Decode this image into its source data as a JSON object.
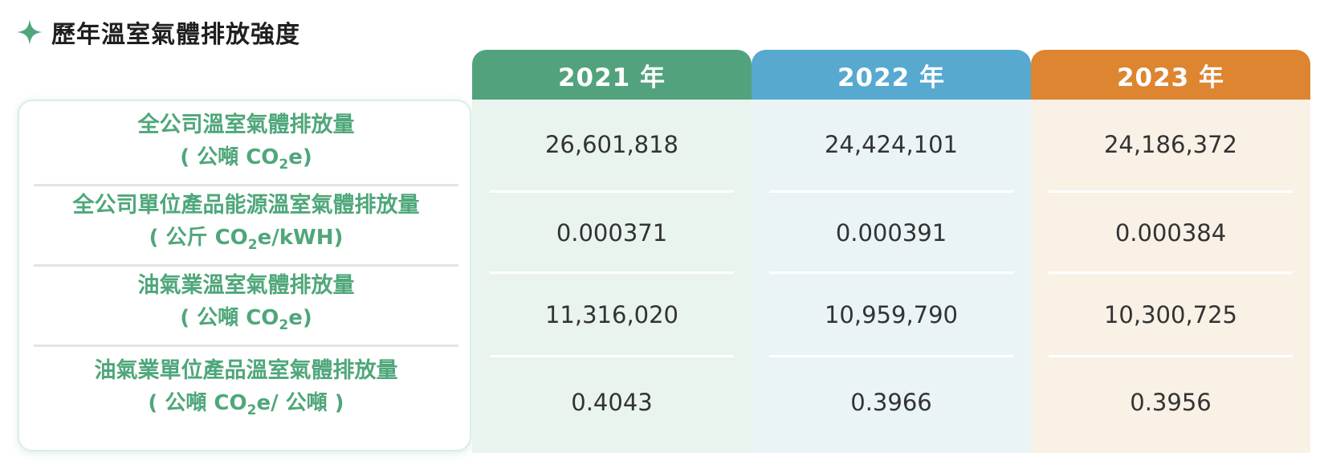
{
  "title": "歷年溫室氣體排放強度",
  "icons": {
    "title_icon": "sparkle-icon"
  },
  "colors": {
    "accent_green": "#4fa77a",
    "head_2021": "#52a37d",
    "head_2022": "#57a9d0",
    "head_2023": "#dd8531",
    "body_2021": "#eaf4ef",
    "body_2022": "#eaf4f7",
    "body_2023": "#f9f1e6"
  },
  "table": {
    "years": [
      "2021 年",
      "2022 年",
      "2023 年"
    ],
    "rows": [
      {
        "label": "全公司溫室氣體排放量",
        "unit_pre": "( 公噸 CO",
        "unit_sub": "2",
        "unit_post": "e)",
        "values": [
          "26,601,818",
          "24,424,101",
          "24,186,372"
        ]
      },
      {
        "label": "全公司單位產品能源溫室氣體排放量",
        "unit_pre": "( 公斤 CO",
        "unit_sub": "2",
        "unit_post": "e/kWH)",
        "values": [
          "0.000371",
          "0.000391",
          "0.000384"
        ]
      },
      {
        "label": "油氣業溫室氣體排放量",
        "unit_pre": "( 公噸 CO",
        "unit_sub": "2",
        "unit_post": "e)",
        "values": [
          "11,316,020",
          "10,959,790",
          "10,300,725"
        ]
      },
      {
        "label": "油氣業單位產品溫室氣體排放量",
        "unit_pre": "( 公噸 CO",
        "unit_sub": "2",
        "unit_post": "e/ 公噸 )",
        "values": [
          "0.4043",
          "0.3966",
          "0.3956"
        ]
      }
    ]
  }
}
